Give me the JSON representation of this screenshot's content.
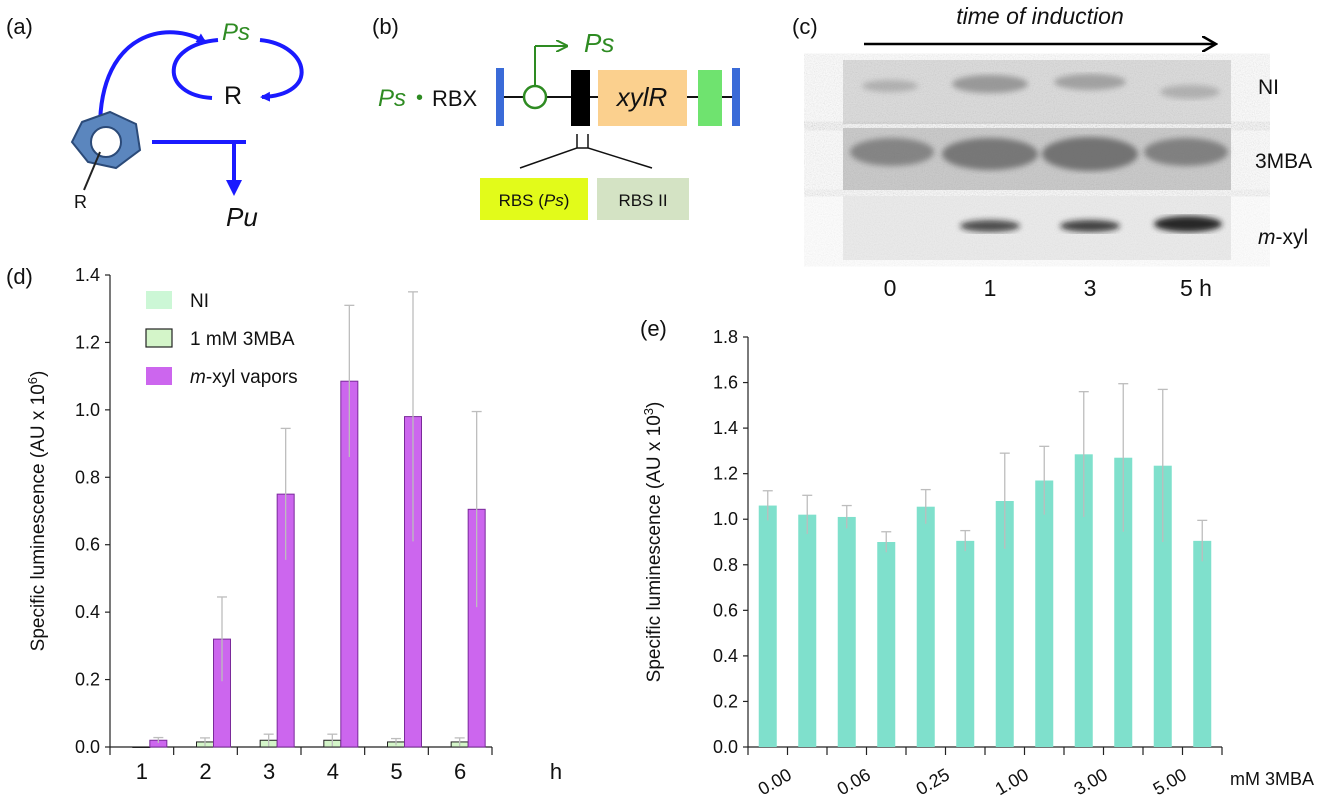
{
  "panels": {
    "a": {
      "label": "(a)",
      "ps": "Ps",
      "r": "R",
      "ring_sub": "R",
      "pu": "Pu"
    },
    "b": {
      "label": "(b)",
      "ps_top": "Ps",
      "ps_left": "Ps",
      "bullet": "•",
      "rbx": "RBX",
      "gene": "xylR",
      "rbs1_prefix": "RBS (",
      "rbs1_em": "Ps",
      "rbs1_suffix": ")",
      "rbs2": "RBS II"
    },
    "c": {
      "label": "(c)",
      "title": "time of induction",
      "rows": [
        "NI",
        "3MBA",
        "m-xyl"
      ],
      "row_labels": [
        {
          "em": "",
          "text": "NI"
        },
        {
          "em": "",
          "text": "3MBA"
        },
        {
          "em": "m",
          "text": "-xyl"
        }
      ],
      "times": [
        "0",
        "1",
        "3",
        "5 h"
      ]
    },
    "d": {
      "label": "(d)"
    },
    "e": {
      "label": "(e)"
    }
  },
  "colors": {
    "ni": "#ccf7d6",
    "threemba": "#d4f5c9",
    "mxyl": "#cc66ee",
    "bar_e": "#7fe0cc",
    "arrow": "#1a1aff",
    "green": "#2e8b22",
    "ring": "#5b86be"
  },
  "chart_data": [
    {
      "id": "d",
      "type": "bar",
      "xlabel": "h",
      "ylabel": "Specific luminescence (AU x 10",
      "ylabel_sup": "6",
      "ylabel_end": ")",
      "categories": [
        "1",
        "2",
        "3",
        "4",
        "5",
        "6"
      ],
      "ylim": [
        0,
        1.4
      ],
      "yticks": [
        "0.0",
        "0.2",
        "0.4",
        "0.6",
        "0.8",
        "1.0",
        "1.2",
        "1.4"
      ],
      "legend": {
        "position": "top-left",
        "entries": [
          {
            "text": "NI",
            "em": ""
          },
          {
            "text": "1 mM 3MBA",
            "em": ""
          },
          {
            "text": "-xyl vapors",
            "em": "m"
          }
        ]
      },
      "series": [
        {
          "name": "NI",
          "values": [
            0,
            0,
            0,
            0,
            0,
            0
          ],
          "err": [
            0,
            0,
            0,
            0,
            0,
            0
          ]
        },
        {
          "name": "1 mM 3MBA",
          "values": [
            0.0,
            0.015,
            0.02,
            0.02,
            0.015,
            0.015
          ],
          "err": [
            0,
            0.012,
            0.018,
            0.018,
            0.01,
            0.012
          ]
        },
        {
          "name": "m-xyl vapors",
          "values": [
            0.02,
            0.32,
            0.75,
            1.085,
            0.98,
            0.705
          ],
          "err": [
            0.008,
            0.125,
            0.195,
            0.225,
            0.37,
            0.29
          ]
        }
      ]
    },
    {
      "id": "e",
      "type": "bar",
      "xlabel": "mM 3MBA",
      "ylabel": "Specific luminescence (AU x 10",
      "ylabel_sup": "3",
      "ylabel_end": ")",
      "ylim": [
        0,
        1.8
      ],
      "yticks": [
        "0.0",
        "0.2",
        "0.4",
        "0.6",
        "0.8",
        "1.0",
        "1.2",
        "1.4",
        "1.6",
        "1.8"
      ],
      "xtick_labels": [
        "0.00",
        "0.06",
        "0.25",
        "1.00",
        "3.00",
        "5.00"
      ],
      "values": [
        1.06,
        1.02,
        1.01,
        0.9,
        1.055,
        0.905,
        1.08,
        1.17,
        1.285,
        1.27,
        1.235,
        0.905
      ],
      "err": [
        0.065,
        0.085,
        0.05,
        0.045,
        0.075,
        0.045,
        0.21,
        0.15,
        0.275,
        0.325,
        0.335,
        0.09
      ]
    }
  ]
}
